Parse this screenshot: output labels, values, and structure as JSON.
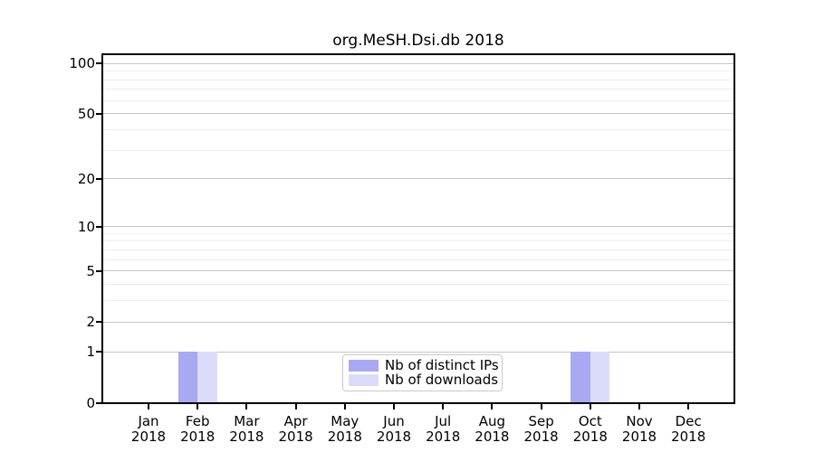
{
  "figure": {
    "title": "org.MeSH.Dsi.db 2018"
  },
  "chart_data": {
    "type": "bar",
    "title": "org.MeSH.Dsi.db 2018",
    "categories": [
      "Jan 2018",
      "Feb 2018",
      "Mar 2018",
      "Apr 2018",
      "May 2018",
      "Jun 2018",
      "Jul 2018",
      "Aug 2018",
      "Sep 2018",
      "Oct 2018",
      "Nov 2018",
      "Dec 2018"
    ],
    "month_labels": [
      "Jan",
      "Feb",
      "Mar",
      "Apr",
      "May",
      "Jun",
      "Jul",
      "Aug",
      "Sep",
      "Oct",
      "Nov",
      "Dec"
    ],
    "year_label": "2018",
    "series": [
      {
        "name": "Nb of distinct IPs",
        "color": "#a8a8f3",
        "values": [
          0,
          1,
          0,
          0,
          0,
          0,
          0,
          0,
          0,
          1,
          0,
          0
        ]
      },
      {
        "name": "Nb of downloads",
        "color": "#dcdcfa",
        "values": [
          0,
          1,
          0,
          0,
          0,
          0,
          0,
          0,
          0,
          1,
          0,
          0
        ]
      }
    ],
    "y_axis": {
      "scale": "log10(1+y)",
      "tick_values": [
        0,
        1,
        2,
        5,
        10,
        20,
        50,
        100
      ],
      "minor_gridline_values": [
        3,
        4,
        6,
        7,
        8,
        9,
        30,
        40,
        60,
        70,
        80,
        90
      ],
      "ylim_top": 114
    },
    "x_axis": {
      "tick_values_are_categories": true
    },
    "grid": true,
    "legend_position": "lower-center"
  },
  "colors": {
    "major_grid": "#c7c7c7",
    "minor_grid": "#ededed",
    "spine": "#000000",
    "text": "#000000",
    "legend_border": "#c9c9c9",
    "background": "#ffffff"
  }
}
